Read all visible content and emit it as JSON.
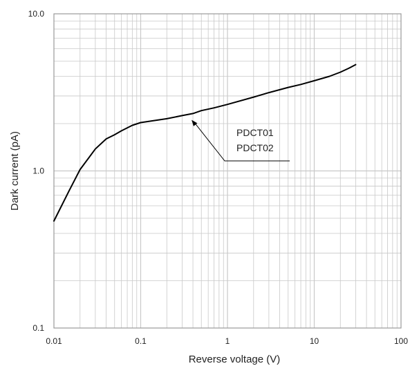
{
  "chart_data": {
    "type": "line",
    "xlabel": "Reverse voltage (V)",
    "ylabel": "Dark current (pA)",
    "xscale": "log",
    "yscale": "log",
    "xlim": [
      0.01,
      100
    ],
    "ylim": [
      0.1,
      10
    ],
    "xticks": [
      "0.01",
      "0.1",
      "1",
      "10",
      "100"
    ],
    "yticks": [
      "0.1",
      "1.0",
      "10.0"
    ],
    "grid": true,
    "series": [
      {
        "x": [
          0.01,
          0.015,
          0.02,
          0.03,
          0.04,
          0.05,
          0.06,
          0.08,
          0.1,
          0.2,
          0.3,
          0.4,
          0.5,
          0.7,
          1,
          2,
          3,
          5,
          7,
          10,
          15,
          20,
          25,
          30
        ],
        "y": [
          0.48,
          0.75,
          1.02,
          1.38,
          1.6,
          1.7,
          1.8,
          1.95,
          2.03,
          2.15,
          2.25,
          2.32,
          2.42,
          2.52,
          2.65,
          2.95,
          3.15,
          3.4,
          3.55,
          3.75,
          4.0,
          4.25,
          4.5,
          4.75
        ],
        "color": "#000000"
      }
    ],
    "annotations": [
      {
        "text": "PDCT01",
        "points_to": {
          "x": 0.4,
          "y": 2.2
        }
      },
      {
        "text": "PDCT02",
        "points_to": {
          "x": 0.4,
          "y": 2.2
        }
      }
    ]
  },
  "colors": {
    "grid": "#c8c8c8",
    "frame": "#9a9a9a",
    "line": "#000000",
    "text": "#222222"
  }
}
